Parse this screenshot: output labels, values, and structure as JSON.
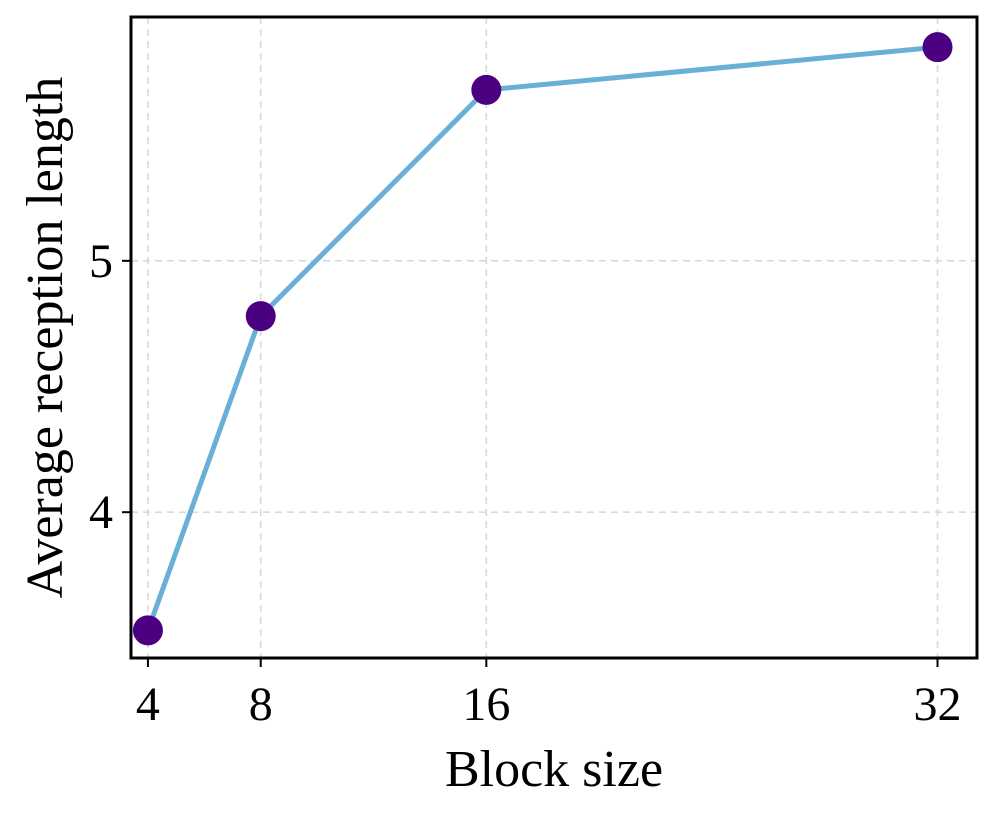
{
  "chart_data": {
    "type": "line",
    "title": "",
    "xlabel": "Block size",
    "ylabel": "Average reception length",
    "x": [
      4,
      8,
      16,
      32
    ],
    "x_tick_labels": [
      "4",
      "8",
      "16",
      "32"
    ],
    "y_ticks": [
      4,
      5
    ],
    "y_tick_labels": [
      "4",
      "5"
    ],
    "xlim": [
      3.4,
      33.4
    ],
    "ylim": [
      3.42,
      5.97
    ],
    "grid": true,
    "series": [
      {
        "values": [
          3.53,
          4.78,
          5.68,
          5.85
        ],
        "line_color": "#6aafd6",
        "marker_color": "#4b0082"
      }
    ]
  }
}
